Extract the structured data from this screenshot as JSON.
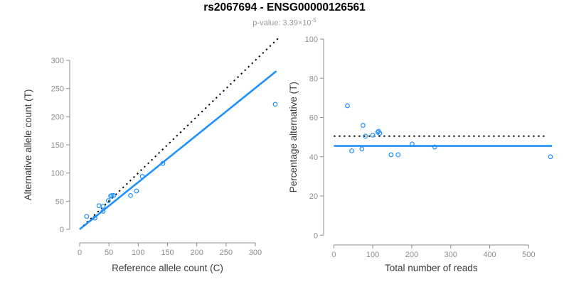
{
  "header": {
    "title": "rs2067694 - ENSG00000126561",
    "pvalue_text": "p-value: 3.39×10",
    "pvalue_exponent": "-5"
  },
  "colors": {
    "accent_blue": "#1E90FF",
    "dotted_black": "#000000",
    "axis_gray": "#8e8e8e",
    "tick_gray": "#8e8e8e",
    "label_dark": "#3c3c3c",
    "title_black": "#000000",
    "subtitle_gray": "#999999"
  },
  "chart_data": [
    {
      "type": "scatter",
      "panel": "allele-counts",
      "xlabel": "Reference allele count (C)",
      "ylabel": "Alternative allele count (T)",
      "xticks": [
        0,
        50,
        100,
        150,
        200,
        250,
        300
      ],
      "yticks": [
        0,
        50,
        100,
        150,
        200,
        250,
        300
      ],
      "xlim": [
        0,
        340
      ],
      "ylim": [
        0,
        340
      ],
      "grid": false,
      "legend": "none",
      "points": [
        [
          12,
          23
        ],
        [
          26,
          20
        ],
        [
          33,
          42
        ],
        [
          40,
          32
        ],
        [
          40,
          41
        ],
        [
          49,
          51
        ],
        [
          53,
          59
        ],
        [
          55,
          60
        ],
        [
          58,
          60
        ],
        [
          87,
          60
        ],
        [
          97,
          68
        ],
        [
          107,
          94
        ],
        [
          142,
          117
        ],
        [
          334,
          222
        ]
      ],
      "lines": [
        {
          "name": "identity-line",
          "style": "dotted",
          "color_key": "dotted_black",
          "from": [
            0,
            0
          ],
          "to": [
            340,
            340
          ]
        },
        {
          "name": "fit-line",
          "style": "solid",
          "color_key": "accent_blue",
          "from": [
            0,
            0
          ],
          "to": [
            336,
            281
          ]
        }
      ]
    },
    {
      "type": "scatter",
      "panel": "percentage-alternative",
      "xlabel": "Total number of reads",
      "ylabel": "Percentage alternative (T)",
      "xticks": [
        0,
        100,
        200,
        300,
        400,
        500
      ],
      "yticks": [
        0,
        20,
        40,
        60,
        80,
        100
      ],
      "xlim": [
        0,
        560
      ],
      "ylim": [
        0,
        100
      ],
      "grid": false,
      "legend": "none",
      "points": [
        [
          35,
          66
        ],
        [
          46,
          43
        ],
        [
          72,
          44
        ],
        [
          75,
          56
        ],
        [
          81,
          50.5
        ],
        [
          100,
          51
        ],
        [
          113,
          52.5
        ],
        [
          115,
          53
        ],
        [
          118,
          52
        ],
        [
          147,
          41
        ],
        [
          165,
          41
        ],
        [
          201,
          46.5
        ],
        [
          259,
          45
        ],
        [
          556,
          40
        ]
      ],
      "lines": [
        {
          "name": "expected-50pct-line",
          "style": "dotted",
          "color_key": "dotted_black",
          "from": [
            0,
            50.5
          ],
          "to": [
            545,
            50.5
          ]
        },
        {
          "name": "fit-line",
          "style": "solid",
          "color_key": "accent_blue",
          "from": [
            0,
            45.5
          ],
          "to": [
            560,
            45.5
          ]
        }
      ]
    }
  ]
}
